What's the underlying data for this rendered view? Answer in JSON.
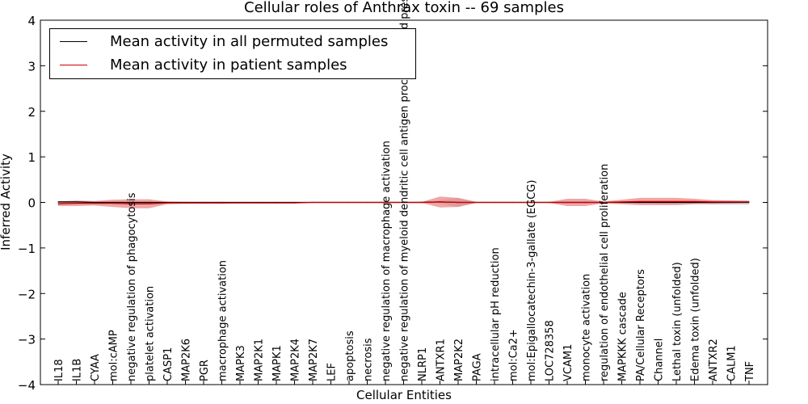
{
  "chart_data": {
    "type": "line",
    "title": "Cellular roles of Anthrax toxin -- 69 samples",
    "xlabel": "Cellular Entities",
    "ylabel": "Inferred Activity",
    "ylim": [
      -4,
      4
    ],
    "yticks": [
      "−4",
      "−3",
      "−2",
      "−1",
      "0",
      "1",
      "2",
      "3",
      "4"
    ],
    "grid": false,
    "legend_position": "top-left",
    "categories": [
      "IL18",
      "IL1B",
      "CYAA",
      "mol:cAMP",
      "negative regulation of phagocytosis",
      "platelet activation",
      "CASP1",
      "MAP2K6",
      "PGR",
      "macrophage activation",
      "MAPK3",
      "MAP2K1",
      "MAPK1",
      "MAP2K4",
      "MAP2K7",
      "LEF",
      "apoptosis",
      "necrosis",
      "negative regulation of macrophage activation",
      "negative regulation of myeloid dendritic cell antigen processing and presentation",
      "NLRP1",
      "ANTXR1",
      "MAP2K2",
      "PAGA",
      "intracellular pH reduction",
      "mol:Ca2+",
      "mol:Epigallocatechin-3-gallate (EGCG)",
      "LOC728358",
      "VCAM1",
      "monocyte activation",
      "regulation of endothelial cell proliferation",
      "MAPKKK cascade",
      "PA/Cellular Receptors",
      "Channel",
      "Lethal toxin (unfolded)",
      "Edema toxin (unfolded)",
      "ANTXR2",
      "CALM1",
      "TNF"
    ],
    "series": [
      {
        "name": "Mean activity in all permuted samples",
        "color": "#000000",
        "band_color": "#b0b8c8",
        "values": [
          0.01,
          0.01,
          0.0,
          0.0,
          0.0,
          0.0,
          0.0,
          0.0,
          0.0,
          0.0,
          0.0,
          0.0,
          0.0,
          0.0,
          0.0,
          0.0,
          0.0,
          0.0,
          0.0,
          0.0,
          0.0,
          0.01,
          0.0,
          0.0,
          0.0,
          0.0,
          0.0,
          0.0,
          0.0,
          0.0,
          0.0,
          0.0,
          0.0,
          0.0,
          0.0,
          0.0,
          0.0,
          0.0,
          0.0
        ],
        "band": [
          0.02,
          0.02,
          0.02,
          0.02,
          0.02,
          0.02,
          0.01,
          0.01,
          0.01,
          0.01,
          0.01,
          0.01,
          0.01,
          0.01,
          0.01,
          0.01,
          0.01,
          0.01,
          0.01,
          0.01,
          0.02,
          0.03,
          0.1,
          0.01,
          0.01,
          0.01,
          0.01,
          0.01,
          0.02,
          0.02,
          0.01,
          0.01,
          0.02,
          0.03,
          0.03,
          0.03,
          0.05,
          0.05,
          0.05
        ]
      },
      {
        "name": "Mean activity in patient samples",
        "color": "#cc0000",
        "band_color": "#e88080",
        "values": [
          -0.03,
          -0.02,
          -0.02,
          -0.02,
          -0.03,
          -0.03,
          -0.01,
          -0.01,
          -0.01,
          -0.01,
          -0.01,
          -0.01,
          -0.01,
          -0.01,
          0.0,
          0.0,
          0.0,
          0.0,
          0.0,
          0.0,
          0.0,
          0.01,
          0.0,
          0.0,
          0.0,
          0.0,
          0.0,
          0.0,
          0.0,
          0.0,
          0.0,
          0.01,
          0.02,
          0.02,
          0.02,
          0.02,
          0.01,
          0.01,
          0.01
        ],
        "band": [
          0.05,
          0.06,
          0.05,
          0.08,
          0.1,
          0.1,
          0.03,
          0.02,
          0.02,
          0.02,
          0.01,
          0.01,
          0.01,
          0.01,
          0.01,
          0.01,
          0.01,
          0.01,
          0.01,
          0.01,
          0.01,
          0.12,
          0.1,
          0.01,
          0.01,
          0.01,
          0.01,
          0.01,
          0.08,
          0.08,
          0.02,
          0.05,
          0.08,
          0.08,
          0.08,
          0.06,
          0.04,
          0.03,
          0.02
        ]
      }
    ]
  }
}
